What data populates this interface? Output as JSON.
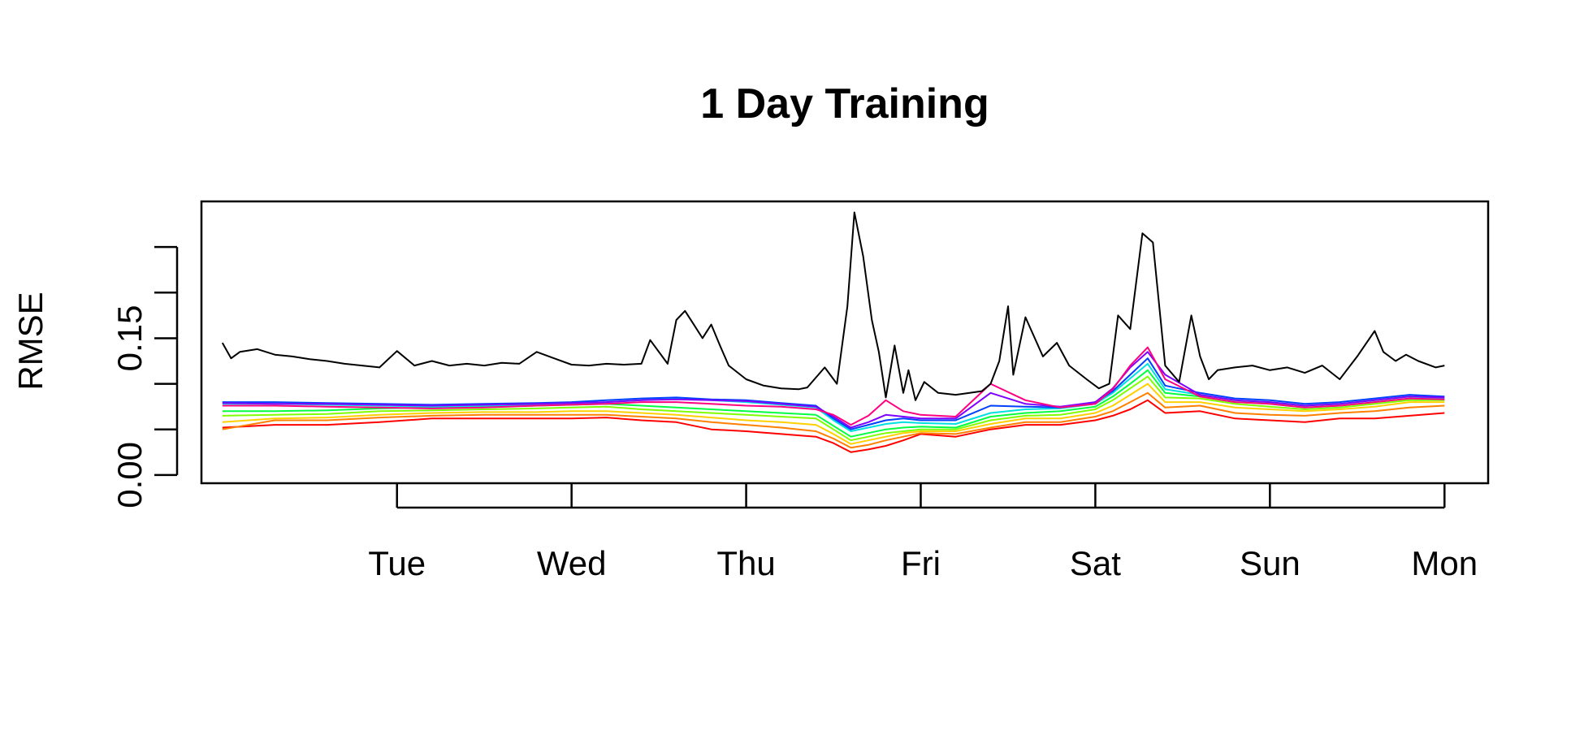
{
  "chart_data": {
    "type": "line",
    "title": "1 Day Training",
    "xlabel": "",
    "ylabel": "RMSE",
    "x_ticks": [
      "Tue",
      "Wed",
      "Thu",
      "Fri",
      "Sat",
      "Sun",
      "Mon"
    ],
    "x_tick_positions": [
      1,
      2,
      3,
      4,
      5,
      6,
      7
    ],
    "xlim": [
      -0.12,
      7.25
    ],
    "y_ticks": [
      0.0,
      0.05,
      0.1,
      0.15,
      0.2,
      0.25
    ],
    "y_tick_labels": [
      "0.00",
      "",
      "",
      "0.15",
      "",
      ""
    ],
    "ylim": [
      -0.009,
      0.3
    ],
    "grid": false,
    "legend": "none",
    "series": [
      {
        "color": "#000000",
        "x": [
          0.0,
          0.05,
          0.1,
          0.2,
          0.3,
          0.4,
          0.5,
          0.6,
          0.7,
          0.8,
          0.9,
          1.0,
          1.1,
          1.2,
          1.3,
          1.4,
          1.5,
          1.6,
          1.7,
          1.8,
          1.9,
          2.0,
          2.1,
          2.2,
          2.3,
          2.4,
          2.45,
          2.55,
          2.6,
          2.65,
          2.7,
          2.75,
          2.8,
          2.85,
          2.9,
          3.0,
          3.1,
          3.2,
          3.3,
          3.35,
          3.45,
          3.52,
          3.58,
          3.62,
          3.67,
          3.72,
          3.76,
          3.8,
          3.85,
          3.9,
          3.93,
          3.97,
          4.02,
          4.1,
          4.2,
          4.28,
          4.35,
          4.4,
          4.45,
          4.5,
          4.53,
          4.6,
          4.7,
          4.78,
          4.85,
          4.95,
          5.02,
          5.08,
          5.13,
          5.2,
          5.27,
          5.33,
          5.4,
          5.48,
          5.55,
          5.6,
          5.65,
          5.7,
          5.8,
          5.9,
          6.0,
          6.1,
          6.2,
          6.3,
          6.4,
          6.5,
          6.6,
          6.65,
          6.72,
          6.78,
          6.85,
          6.95,
          7.0
        ],
        "values": [
          0.145,
          0.128,
          0.135,
          0.138,
          0.132,
          0.13,
          0.127,
          0.125,
          0.122,
          0.12,
          0.118,
          0.136,
          0.12,
          0.125,
          0.12,
          0.122,
          0.12,
          0.123,
          0.122,
          0.135,
          0.128,
          0.121,
          0.12,
          0.122,
          0.121,
          0.122,
          0.148,
          0.122,
          0.17,
          0.18,
          0.165,
          0.15,
          0.165,
          0.142,
          0.12,
          0.105,
          0.098,
          0.095,
          0.094,
          0.096,
          0.118,
          0.1,
          0.185,
          0.288,
          0.24,
          0.17,
          0.135,
          0.085,
          0.142,
          0.09,
          0.115,
          0.082,
          0.102,
          0.09,
          0.088,
          0.09,
          0.092,
          0.1,
          0.125,
          0.185,
          0.11,
          0.173,
          0.13,
          0.145,
          0.12,
          0.105,
          0.095,
          0.1,
          0.175,
          0.16,
          0.265,
          0.255,
          0.12,
          0.102,
          0.175,
          0.13,
          0.105,
          0.115,
          0.118,
          0.12,
          0.115,
          0.118,
          0.112,
          0.12,
          0.105,
          0.13,
          0.158,
          0.135,
          0.125,
          0.132,
          0.125,
          0.118,
          0.12
        ]
      },
      {
        "color": "#ff0000",
        "x": [
          0.0,
          0.3,
          0.6,
          0.9,
          1.2,
          1.5,
          1.8,
          2.0,
          2.2,
          2.4,
          2.6,
          2.8,
          3.0,
          3.2,
          3.4,
          3.5,
          3.6,
          3.7,
          3.8,
          3.9,
          4.0,
          4.2,
          4.4,
          4.6,
          4.8,
          5.0,
          5.1,
          5.2,
          5.3,
          5.4,
          5.6,
          5.8,
          6.0,
          6.2,
          6.4,
          6.6,
          6.8,
          7.0
        ],
        "values": [
          0.052,
          0.055,
          0.055,
          0.058,
          0.062,
          0.062,
          0.062,
          0.062,
          0.063,
          0.06,
          0.058,
          0.05,
          0.048,
          0.045,
          0.042,
          0.035,
          0.025,
          0.028,
          0.032,
          0.038,
          0.045,
          0.042,
          0.05,
          0.055,
          0.055,
          0.06,
          0.065,
          0.072,
          0.082,
          0.068,
          0.07,
          0.062,
          0.06,
          0.058,
          0.062,
          0.062,
          0.065,
          0.068
        ]
      },
      {
        "color": "#ff8000",
        "x": [
          0.0,
          0.3,
          0.6,
          0.9,
          1.2,
          1.5,
          1.8,
          2.0,
          2.2,
          2.4,
          2.6,
          2.8,
          3.0,
          3.2,
          3.4,
          3.5,
          3.6,
          3.7,
          3.8,
          3.9,
          4.0,
          4.2,
          4.4,
          4.6,
          4.8,
          5.0,
          5.1,
          5.2,
          5.3,
          5.4,
          5.6,
          5.8,
          6.0,
          6.2,
          6.4,
          6.6,
          6.8,
          7.0
        ],
        "values": [
          0.05,
          0.06,
          0.06,
          0.063,
          0.065,
          0.066,
          0.066,
          0.066,
          0.066,
          0.064,
          0.062,
          0.058,
          0.055,
          0.052,
          0.048,
          0.04,
          0.03,
          0.033,
          0.038,
          0.042,
          0.046,
          0.045,
          0.052,
          0.058,
          0.058,
          0.064,
          0.07,
          0.08,
          0.09,
          0.074,
          0.076,
          0.068,
          0.066,
          0.065,
          0.068,
          0.07,
          0.074,
          0.076
        ]
      },
      {
        "color": "#ffd000",
        "x": [
          0.0,
          0.3,
          0.6,
          0.9,
          1.2,
          1.5,
          1.8,
          2.0,
          2.2,
          2.4,
          2.6,
          2.8,
          3.0,
          3.2,
          3.4,
          3.5,
          3.6,
          3.7,
          3.8,
          3.9,
          4.0,
          4.2,
          4.4,
          4.6,
          4.8,
          5.0,
          5.1,
          5.2,
          5.3,
          5.4,
          5.6,
          5.8,
          6.0,
          6.2,
          6.4,
          6.6,
          6.8,
          7.0
        ],
        "values": [
          0.058,
          0.062,
          0.063,
          0.066,
          0.068,
          0.069,
          0.069,
          0.07,
          0.07,
          0.068,
          0.066,
          0.063,
          0.06,
          0.058,
          0.055,
          0.045,
          0.034,
          0.038,
          0.042,
          0.046,
          0.048,
          0.048,
          0.056,
          0.062,
          0.062,
          0.068,
          0.076,
          0.088,
          0.1,
          0.08,
          0.08,
          0.074,
          0.072,
          0.07,
          0.072,
          0.075,
          0.08,
          0.08
        ]
      },
      {
        "color": "#80ff00",
        "x": [
          0.0,
          0.3,
          0.6,
          0.9,
          1.2,
          1.5,
          1.8,
          2.0,
          2.2,
          2.4,
          2.6,
          2.8,
          3.0,
          3.2,
          3.4,
          3.5,
          3.6,
          3.7,
          3.8,
          3.9,
          4.0,
          4.2,
          4.4,
          4.6,
          4.8,
          5.0,
          5.1,
          5.2,
          5.3,
          5.4,
          5.6,
          5.8,
          6.0,
          6.2,
          6.4,
          6.6,
          6.8,
          7.0
        ],
        "values": [
          0.065,
          0.066,
          0.067,
          0.07,
          0.071,
          0.072,
          0.073,
          0.074,
          0.075,
          0.072,
          0.07,
          0.068,
          0.066,
          0.064,
          0.062,
          0.05,
          0.038,
          0.042,
          0.046,
          0.048,
          0.05,
          0.05,
          0.06,
          0.065,
          0.066,
          0.072,
          0.082,
          0.095,
          0.108,
          0.085,
          0.084,
          0.078,
          0.075,
          0.072,
          0.074,
          0.078,
          0.082,
          0.082
        ]
      },
      {
        "color": "#00ff40",
        "x": [
          0.0,
          0.3,
          0.6,
          0.9,
          1.2,
          1.5,
          1.8,
          2.0,
          2.2,
          2.4,
          2.6,
          2.8,
          3.0,
          3.2,
          3.4,
          3.5,
          3.6,
          3.7,
          3.8,
          3.9,
          4.0,
          4.2,
          4.4,
          4.6,
          4.8,
          5.0,
          5.1,
          5.2,
          5.3,
          5.4,
          5.6,
          5.8,
          6.0,
          6.2,
          6.4,
          6.6,
          6.8,
          7.0
        ],
        "values": [
          0.07,
          0.07,
          0.071,
          0.073,
          0.074,
          0.075,
          0.076,
          0.077,
          0.078,
          0.076,
          0.074,
          0.072,
          0.07,
          0.068,
          0.066,
          0.054,
          0.042,
          0.046,
          0.05,
          0.052,
          0.053,
          0.052,
          0.064,
          0.068,
          0.07,
          0.075,
          0.086,
          0.1,
          0.115,
          0.09,
          0.086,
          0.08,
          0.078,
          0.074,
          0.076,
          0.08,
          0.084,
          0.083
        ]
      },
      {
        "color": "#00e0e0",
        "x": [
          0.0,
          0.3,
          0.6,
          0.9,
          1.2,
          1.5,
          1.8,
          2.0,
          2.2,
          2.4,
          2.6,
          2.8,
          3.0,
          3.2,
          3.4,
          3.5,
          3.6,
          3.7,
          3.8,
          3.9,
          4.0,
          4.2,
          4.4,
          4.6,
          4.8,
          5.0,
          5.1,
          5.2,
          5.3,
          5.4,
          5.6,
          5.8,
          6.0,
          6.2,
          6.4,
          6.6,
          6.8,
          7.0
        ],
        "values": [
          0.078,
          0.078,
          0.077,
          0.076,
          0.075,
          0.076,
          0.077,
          0.078,
          0.08,
          0.082,
          0.084,
          0.082,
          0.08,
          0.077,
          0.074,
          0.06,
          0.048,
          0.052,
          0.056,
          0.058,
          0.057,
          0.056,
          0.068,
          0.072,
          0.073,
          0.078,
          0.09,
          0.106,
          0.122,
          0.094,
          0.088,
          0.082,
          0.08,
          0.076,
          0.078,
          0.082,
          0.086,
          0.084
        ]
      },
      {
        "color": "#0040ff",
        "x": [
          0.0,
          0.3,
          0.6,
          0.9,
          1.2,
          1.5,
          1.8,
          2.0,
          2.2,
          2.4,
          2.6,
          2.8,
          3.0,
          3.2,
          3.4,
          3.5,
          3.6,
          3.7,
          3.8,
          3.9,
          4.0,
          4.2,
          4.4,
          4.6,
          4.8,
          5.0,
          5.1,
          5.2,
          5.3,
          5.4,
          5.6,
          5.8,
          6.0,
          6.2,
          6.4,
          6.6,
          6.8,
          7.0
        ],
        "values": [
          0.08,
          0.08,
          0.079,
          0.078,
          0.077,
          0.078,
          0.079,
          0.08,
          0.082,
          0.084,
          0.085,
          0.083,
          0.082,
          0.079,
          0.076,
          0.062,
          0.05,
          0.055,
          0.06,
          0.062,
          0.06,
          0.06,
          0.076,
          0.075,
          0.074,
          0.08,
          0.092,
          0.11,
          0.128,
          0.098,
          0.09,
          0.084,
          0.082,
          0.078,
          0.08,
          0.084,
          0.088,
          0.086
        ]
      },
      {
        "color": "#8000ff",
        "x": [
          0.0,
          0.3,
          0.6,
          0.9,
          1.2,
          1.5,
          1.8,
          2.0,
          2.2,
          2.4,
          2.6,
          2.8,
          3.0,
          3.2,
          3.4,
          3.5,
          3.6,
          3.7,
          3.8,
          3.9,
          4.0,
          4.2,
          4.4,
          4.6,
          4.8,
          5.0,
          5.1,
          5.2,
          5.3,
          5.4,
          5.6,
          5.8,
          6.0,
          6.2,
          6.4,
          6.6,
          6.8,
          7.0
        ],
        "values": [
          0.079,
          0.078,
          0.078,
          0.077,
          0.076,
          0.077,
          0.078,
          0.079,
          0.08,
          0.082,
          0.083,
          0.082,
          0.081,
          0.078,
          0.075,
          0.064,
          0.052,
          0.058,
          0.066,
          0.064,
          0.062,
          0.062,
          0.09,
          0.078,
          0.075,
          0.08,
          0.095,
          0.118,
          0.135,
          0.11,
          0.088,
          0.082,
          0.08,
          0.076,
          0.078,
          0.082,
          0.086,
          0.085
        ]
      },
      {
        "color": "#ff0080",
        "x": [
          0.0,
          0.3,
          0.6,
          0.9,
          1.2,
          1.5,
          1.8,
          2.0,
          2.2,
          2.4,
          2.6,
          2.8,
          3.0,
          3.2,
          3.4,
          3.5,
          3.6,
          3.7,
          3.8,
          3.9,
          4.0,
          4.2,
          4.4,
          4.6,
          4.8,
          5.0,
          5.1,
          5.2,
          5.3,
          5.4,
          5.6,
          5.8,
          6.0,
          6.2,
          6.4,
          6.6,
          6.8,
          7.0
        ],
        "values": [
          0.076,
          0.076,
          0.075,
          0.074,
          0.073,
          0.074,
          0.076,
          0.077,
          0.078,
          0.08,
          0.08,
          0.078,
          0.076,
          0.075,
          0.072,
          0.066,
          0.055,
          0.065,
          0.082,
          0.07,
          0.066,
          0.064,
          0.1,
          0.082,
          0.074,
          0.078,
          0.094,
          0.12,
          0.14,
          0.105,
          0.086,
          0.08,
          0.078,
          0.074,
          0.076,
          0.08,
          0.084,
          0.083
        ]
      }
    ]
  }
}
